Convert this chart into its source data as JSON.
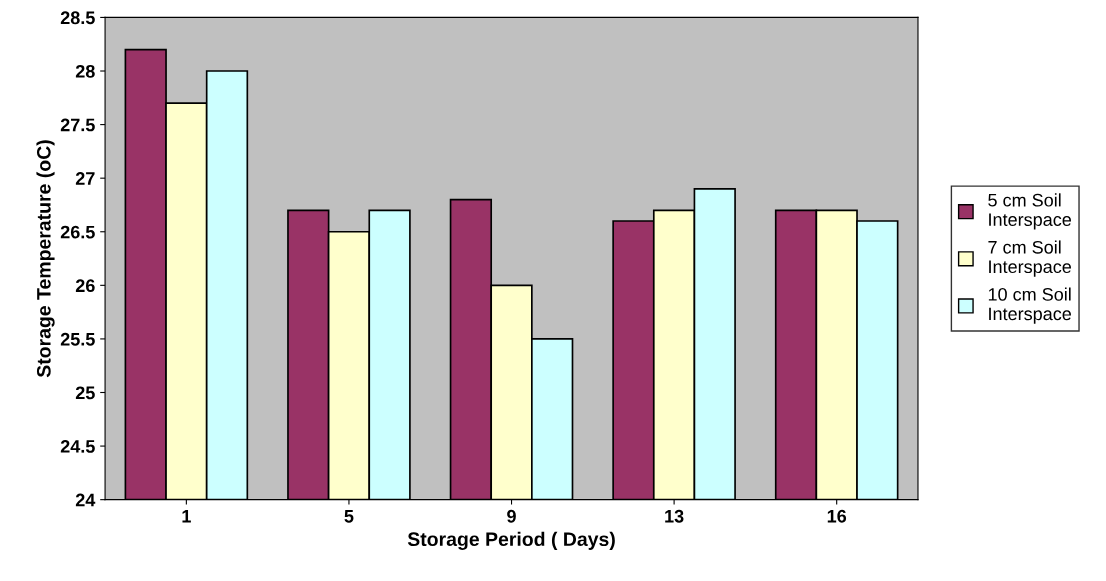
{
  "chart_data": {
    "type": "bar",
    "xlabel": "Storage Period ( Days)",
    "ylabel": "Storage Temperature (oC)",
    "categories": [
      "1",
      "5",
      "9",
      "13",
      "16"
    ],
    "series": [
      {
        "name": "5 cm Soil\nInterspace",
        "color": "#993366",
        "values": [
          28.2,
          26.7,
          26.8,
          26.6,
          26.7
        ]
      },
      {
        "name": "7 cm Soil\nInterspace",
        "color": "#ffffcc",
        "values": [
          27.7,
          26.5,
          26.0,
          26.7,
          26.7
        ]
      },
      {
        "name": "10 cm Soil\nInterspace",
        "color": "#ccffff",
        "values": [
          28.0,
          26.7,
          25.5,
          26.9,
          26.6
        ]
      }
    ],
    "ylim": [
      24,
      28.5
    ],
    "yticks": [
      24,
      24.5,
      25,
      25.5,
      26,
      26.5,
      27,
      27.5,
      28,
      28.5
    ],
    "grid": false,
    "legend": "right"
  }
}
